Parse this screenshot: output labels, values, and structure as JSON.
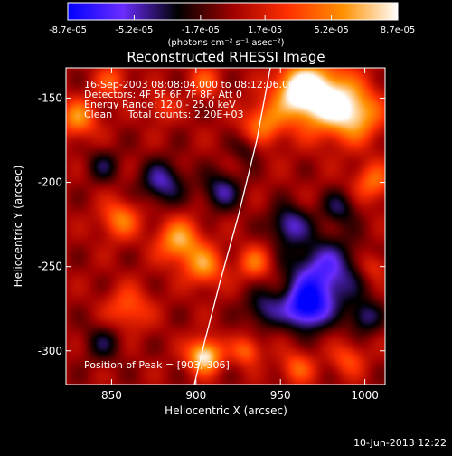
{
  "chart_data": {
    "type": "heatmap",
    "title": "Reconstructed RHESSI Image",
    "xlabel": "Heliocentric X (arcsec)",
    "ylabel": "Heliocentric Y (arcsec)",
    "xlim": [
      823,
      1012
    ],
    "ylim": [
      -320,
      -132
    ],
    "x_ticks": [
      850,
      900,
      950,
      1000
    ],
    "y_ticks": [
      -300,
      -250,
      -200,
      -150
    ],
    "colorbar": {
      "range": [
        -8.7e-05,
        8.7e-05
      ],
      "tick_values": [
        -8.7e-05,
        -5.2e-05,
        -1.7e-05,
        1.7e-05,
        5.2e-05,
        8.7e-05
      ],
      "tick_labels": [
        "-8.7e-05",
        "-5.2e-05",
        "-1.7e-05",
        "1.7e-05",
        "5.2e-05",
        "8.7e-05"
      ],
      "unit_label": "(photons cm⁻² s⁻¹ asec⁻²)",
      "colors": [
        "#0000ff",
        "#6a2cff",
        "#000000",
        "#a00000",
        "#ff3000",
        "#ff9000",
        "#ffffff"
      ]
    },
    "annotations": [
      "16-Sep-2003 08:08:04.000 to 08:12:06.000",
      "Detectors: 4F 5F 6F 7F 8F, Att 0",
      "Energy Range: 12.0 - 25.0 keV",
      "Clean     Total counts: 2.20E+03"
    ],
    "peak_label": "Position of Peak = [903,-306]",
    "peak": {
      "x": 903,
      "y": -306
    },
    "limb_curve": [
      [
        944,
        -132
      ],
      [
        936,
        -175
      ],
      [
        925,
        -220
      ],
      [
        914,
        -260
      ],
      [
        905,
        -295
      ],
      [
        899,
        -320
      ]
    ],
    "blobs": [
      {
        "x": 975,
        "y": -150,
        "s": 14,
        "v": 8.7e-05
      },
      {
        "x": 960,
        "y": -145,
        "s": 10,
        "v": 6.5e-05
      },
      {
        "x": 995,
        "y": -160,
        "s": 11,
        "v": 6e-05
      },
      {
        "x": 940,
        "y": -165,
        "s": 9,
        "v": 5e-05
      },
      {
        "x": 1005,
        "y": -200,
        "s": 8,
        "v": 4.5e-05
      },
      {
        "x": 830,
        "y": -162,
        "s": 8,
        "v": 5.5e-05
      },
      {
        "x": 850,
        "y": -140,
        "s": 7,
        "v": 3.5e-05
      },
      {
        "x": 855,
        "y": -222,
        "s": 8,
        "v": 5e-05
      },
      {
        "x": 890,
        "y": -235,
        "s": 9,
        "v": 6.5e-05
      },
      {
        "x": 905,
        "y": -250,
        "s": 8,
        "v": 5.5e-05
      },
      {
        "x": 935,
        "y": -248,
        "s": 7,
        "v": 4.5e-05
      },
      {
        "x": 860,
        "y": -275,
        "s": 9,
        "v": 4e-05
      },
      {
        "x": 905,
        "y": -303,
        "s": 7,
        "v": 8.7e-05
      },
      {
        "x": 930,
        "y": -300,
        "s": 6,
        "v": 4.5e-05
      },
      {
        "x": 960,
        "y": -310,
        "s": 7,
        "v": 4e-05
      },
      {
        "x": 990,
        "y": -305,
        "s": 7,
        "v": 3.5e-05
      },
      {
        "x": 905,
        "y": -140,
        "s": 7,
        "v": 3.5e-05
      },
      {
        "x": 1005,
        "y": -250,
        "s": 6,
        "v": 3e-05
      },
      {
        "x": 880,
        "y": -155,
        "s": 6,
        "v": 3e-05
      },
      {
        "x": 975,
        "y": -255,
        "s": 15,
        "v": -6.5e-05
      },
      {
        "x": 965,
        "y": -275,
        "s": 9,
        "v": -7.5e-05
      },
      {
        "x": 955,
        "y": -225,
        "s": 8,
        "v": -5e-05
      },
      {
        "x": 880,
        "y": -200,
        "s": 9,
        "v": -5e-05
      },
      {
        "x": 915,
        "y": -205,
        "s": 8,
        "v": -4.5e-05
      },
      {
        "x": 940,
        "y": -275,
        "s": 8,
        "v": -4e-05
      },
      {
        "x": 985,
        "y": -215,
        "s": 7,
        "v": -3.5e-05
      },
      {
        "x": 845,
        "y": -295,
        "s": 8,
        "v": -3e-05
      },
      {
        "x": 845,
        "y": -190,
        "s": 7,
        "v": -3e-05
      },
      {
        "x": 1000,
        "y": -280,
        "s": 7,
        "v": -4e-05
      },
      {
        "x": 930,
        "y": -180,
        "s": 6,
        "v": -2.5e-05
      }
    ],
    "grid": false,
    "legend": "none"
  },
  "footer": {
    "date": "10-Jun-2013 12:22"
  }
}
